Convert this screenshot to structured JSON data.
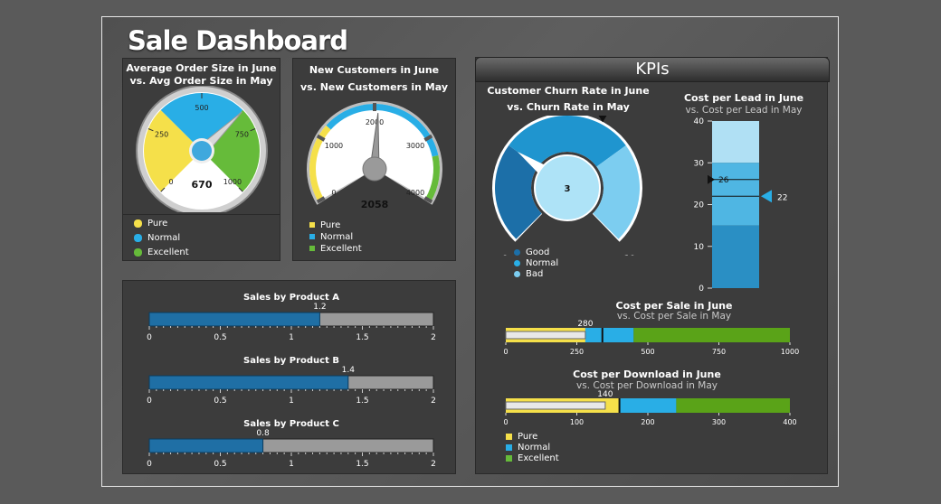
{
  "dashboard": {
    "title": "Sale Dashboard",
    "kpis_header": "KPIs"
  },
  "legend": {
    "pure": "Pure",
    "normal": "Normal",
    "excellent": "Excellent",
    "good": "Good",
    "bad": "Bad"
  },
  "colors": {
    "pure": "#f5e04a",
    "normal": "#29aee6",
    "excellent": "#66bb3a",
    "good": "#1c6fa8",
    "bad": "#7ccdf0"
  },
  "chart_data": [
    {
      "type": "gauge",
      "title": "Average Order Size in June",
      "subtitle": "vs. Avg Order Size in May",
      "range": [
        0,
        1000
      ],
      "ticks": [
        "0",
        "250",
        "500",
        "750",
        "1000"
      ],
      "bands": [
        {
          "from": 0,
          "to": 333,
          "label": "Pure"
        },
        {
          "from": 333,
          "to": 667,
          "label": "Normal"
        },
        {
          "from": 667,
          "to": 1000,
          "label": "Excellent"
        }
      ],
      "value": 670,
      "value_label": "670"
    },
    {
      "type": "gauge",
      "title": "New Customers in June",
      "subtitle": "vs. New Customers in May",
      "range": [
        0,
        4000
      ],
      "ticks": [
        "0",
        "1000",
        "2000",
        "3000",
        "4000"
      ],
      "value": 2058,
      "value_label": "2058"
    },
    {
      "type": "gauge",
      "title": "Customer Churn Rate in June",
      "subtitle": "vs. Churn Rate in May",
      "range": [
        0,
        10
      ],
      "ticks": [
        "0",
        "10"
      ],
      "value": 3,
      "value_label": "3",
      "marker": 6
    },
    {
      "type": "bullet-vertical",
      "title": "Cost per Lead in June",
      "subtitle": "vs. Cost per Lead in May",
      "range": [
        0,
        40
      ],
      "ticks": [
        "0",
        "10",
        "20",
        "30",
        "40"
      ],
      "value": 26,
      "value_label": "26",
      "target": 22,
      "target_label": "22"
    },
    {
      "type": "bullet",
      "title": "Cost per Sale in June",
      "subtitle": "vs. Cost per Sale in May",
      "range": [
        0,
        1000
      ],
      "ticks": [
        "0",
        "250",
        "500",
        "750",
        "1000"
      ],
      "bands": [
        280,
        450,
        1000
      ],
      "value": 280,
      "value_label": "280",
      "target": 340
    },
    {
      "type": "bullet",
      "title": "Cost per Download in June",
      "subtitle": "vs. Cost per Download in May",
      "range": [
        0,
        400
      ],
      "ticks": [
        "0",
        "100",
        "200",
        "300",
        "400"
      ],
      "bands": [
        160,
        240,
        400
      ],
      "value": 140,
      "value_label": "140",
      "target": 160
    },
    {
      "type": "bar",
      "title": "Sales by Product A",
      "range": [
        0,
        2
      ],
      "ticks": [
        "0",
        "0.5",
        "1",
        "1.5",
        "2"
      ],
      "value": 1.2,
      "value_label": "1.2"
    },
    {
      "type": "bar",
      "title": "Sales by Product B",
      "range": [
        0,
        2
      ],
      "ticks": [
        "0",
        "0.5",
        "1",
        "1.5",
        "2"
      ],
      "value": 1.4,
      "value_label": "1.4"
    },
    {
      "type": "bar",
      "title": "Sales by Product C",
      "range": [
        0,
        2
      ],
      "ticks": [
        "0",
        "0.5",
        "1",
        "1.5",
        "2"
      ],
      "value": 0.8,
      "value_label": "0.8"
    }
  ]
}
